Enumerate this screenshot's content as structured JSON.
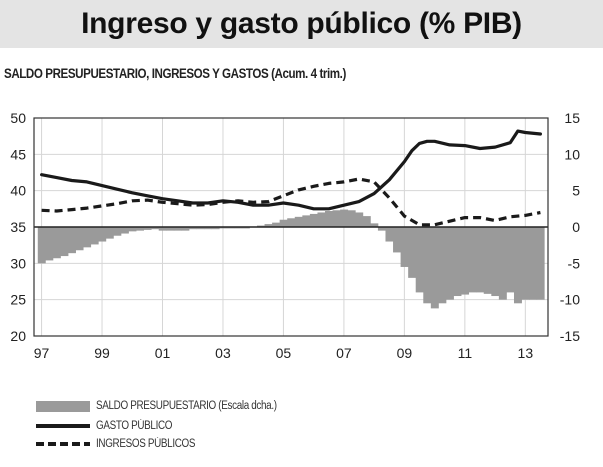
{
  "page": {
    "title": "Ingreso y gasto público (% PIB)",
    "subtitle": "SALDO PRESUPUESTARIO, INGRESOS Y GASTOS (Acum. 4 trim.)"
  },
  "colors": {
    "balance": "#9a9a9a",
    "gasto": "#1a1a1a",
    "ingresos": "#1a1a1a",
    "grid": "#d6d6d6",
    "background": "#ffffff"
  },
  "chart_data": {
    "type": "line",
    "x_tick_labels": [
      "97",
      "99",
      "01",
      "03",
      "05",
      "07",
      "09",
      "11",
      "13"
    ],
    "x_tick_years": [
      1997,
      1999,
      2001,
      2003,
      2005,
      2007,
      2009,
      2011,
      2013
    ],
    "xlim": [
      1996.75,
      2013.75
    ],
    "left_axis": {
      "ylim": [
        20,
        50
      ],
      "ticks": [
        "50",
        "45",
        "40",
        "35",
        "30",
        "25",
        "20"
      ]
    },
    "right_axis": {
      "ylim": [
        -15,
        15
      ],
      "ticks": [
        "15",
        "10",
        "5",
        "0",
        "-5",
        "-10",
        "-15"
      ]
    },
    "grid": true,
    "legend_position": "bottom",
    "series": [
      {
        "name": "SALDO PRESUPUESTARIO (Escala dcha.)",
        "type": "bar",
        "axis": "right",
        "x": [
          1997.0,
          1997.25,
          1997.5,
          1997.75,
          1998.0,
          1998.25,
          1998.5,
          1998.75,
          1999.0,
          1999.25,
          1999.5,
          1999.75,
          2000.0,
          2000.25,
          2000.5,
          2000.75,
          2001.0,
          2001.25,
          2001.5,
          2001.75,
          2002.0,
          2002.25,
          2002.5,
          2002.75,
          2003.0,
          2003.25,
          2003.5,
          2003.75,
          2004.0,
          2004.25,
          2004.5,
          2004.75,
          2005.0,
          2005.25,
          2005.5,
          2005.75,
          2006.0,
          2006.25,
          2006.5,
          2006.75,
          2007.0,
          2007.25,
          2007.5,
          2007.75,
          2008.0,
          2008.25,
          2008.5,
          2008.75,
          2009.0,
          2009.25,
          2009.5,
          2009.75,
          2010.0,
          2010.25,
          2010.5,
          2010.75,
          2011.0,
          2011.25,
          2011.5,
          2011.75,
          2012.0,
          2012.25,
          2012.5,
          2012.75,
          2013.0,
          2013.25,
          2013.5
        ],
        "values": [
          -5.0,
          -4.6,
          -4.3,
          -4.0,
          -3.6,
          -3.2,
          -2.8,
          -2.4,
          -2.0,
          -1.6,
          -1.2,
          -0.9,
          -0.6,
          -0.5,
          -0.4,
          -0.3,
          -0.5,
          -0.5,
          -0.5,
          -0.5,
          -0.3,
          -0.3,
          -0.3,
          -0.3,
          -0.2,
          -0.2,
          -0.2,
          -0.2,
          0.0,
          0.2,
          0.4,
          0.6,
          1.0,
          1.2,
          1.4,
          1.6,
          1.8,
          2.0,
          2.2,
          2.3,
          2.4,
          2.3,
          2.0,
          1.5,
          0.5,
          -0.5,
          -2.0,
          -3.5,
          -5.5,
          -7.0,
          -9.0,
          -10.5,
          -11.2,
          -10.5,
          -10.0,
          -9.5,
          -9.3,
          -9.0,
          -9.0,
          -9.2,
          -9.5,
          -10.0,
          -9.0,
          -10.5,
          -10.0,
          -10.0,
          -10.0
        ]
      },
      {
        "name": "GASTO PÚBLICO",
        "type": "line",
        "axis": "left",
        "x": [
          1997.0,
          1997.5,
          1998.0,
          1998.5,
          1999.0,
          1999.5,
          2000.0,
          2000.5,
          2001.0,
          2001.5,
          2002.0,
          2002.5,
          2003.0,
          2003.5,
          2004.0,
          2004.5,
          2005.0,
          2005.5,
          2006.0,
          2006.5,
          2007.0,
          2007.5,
          2008.0,
          2008.5,
          2009.0,
          2009.25,
          2009.5,
          2009.75,
          2010.0,
          2010.5,
          2011.0,
          2011.5,
          2012.0,
          2012.5,
          2012.75,
          2013.0,
          2013.5
        ],
        "values": [
          42.2,
          41.8,
          41.4,
          41.2,
          40.7,
          40.2,
          39.7,
          39.3,
          38.9,
          38.6,
          38.3,
          38.3,
          38.6,
          38.4,
          38.0,
          38.0,
          38.3,
          38.0,
          37.5,
          37.5,
          38.0,
          38.5,
          39.6,
          41.5,
          44.0,
          45.5,
          46.5,
          46.8,
          46.8,
          46.3,
          46.2,
          45.8,
          46.0,
          46.6,
          48.2,
          48.0,
          47.8
        ]
      },
      {
        "name": "INGRESOS PÚBLICOS",
        "type": "line",
        "style": "dashed",
        "axis": "left",
        "x": [
          1997.0,
          1997.5,
          1998.0,
          1998.5,
          1999.0,
          1999.5,
          2000.0,
          2000.5,
          2001.0,
          2001.5,
          2002.0,
          2002.5,
          2003.0,
          2003.5,
          2004.0,
          2004.5,
          2005.0,
          2005.5,
          2006.0,
          2006.5,
          2007.0,
          2007.5,
          2008.0,
          2008.5,
          2009.0,
          2009.5,
          2010.0,
          2010.5,
          2011.0,
          2011.5,
          2012.0,
          2012.5,
          2013.0,
          2013.5
        ],
        "values": [
          37.3,
          37.2,
          37.4,
          37.6,
          37.9,
          38.2,
          38.6,
          38.7,
          38.4,
          38.2,
          38.0,
          38.1,
          38.4,
          38.6,
          38.4,
          38.5,
          39.3,
          40.1,
          40.6,
          41.0,
          41.2,
          41.6,
          41.2,
          39.0,
          36.5,
          35.3,
          35.3,
          35.8,
          36.3,
          36.3,
          35.9,
          36.4,
          36.6,
          37.0
        ]
      }
    ]
  },
  "legend": {
    "balance": "SALDO PRESUPUESTARIO (Escala dcha.)",
    "gasto": "GASTO PÚBLICO",
    "ingresos": "INGRESOS PÚBLICOS"
  }
}
